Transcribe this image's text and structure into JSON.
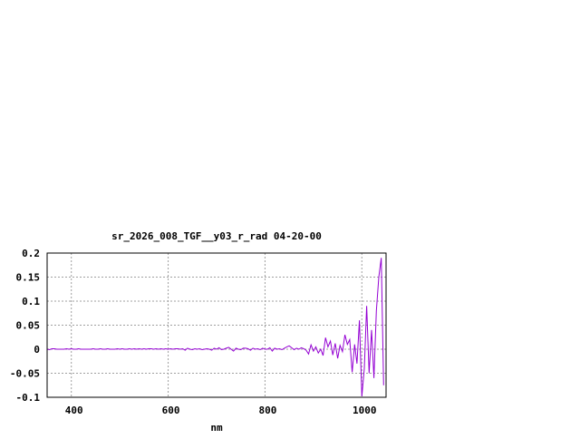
{
  "chart_data": {
    "type": "line",
    "title": "sr_2026_008_TGF__y03_r_rad 04-20-00",
    "xlabel": "nm",
    "ylabel": "",
    "xlim": [
      350,
      1050
    ],
    "ylim": [
      -0.1,
      0.2
    ],
    "xticks": [
      400,
      600,
      800,
      1000
    ],
    "xtick_labels": [
      "400",
      "600",
      "800",
      "1000"
    ],
    "yticks": [
      0.2,
      0.15,
      0.1,
      0.05,
      0,
      -0.05,
      -0.1
    ],
    "ytick_labels": [
      "0.2",
      "0.15",
      "0.1",
      "0.05",
      "0",
      "-0.05",
      "-0.1"
    ],
    "grid": true,
    "line_color": "#9400d3",
    "series": [
      {
        "x_start": 350,
        "x_step": 5,
        "values": [
          0,
          -0.001,
          0.001,
          0.001,
          0,
          0,
          0,
          0,
          0.001,
          0,
          0.001,
          0,
          0,
          0.001,
          0,
          0,
          0,
          0,
          0,
          0.001,
          0,
          0,
          0.001,
          0,
          0,
          0.001,
          0,
          0,
          0,
          0.001,
          0,
          0.001,
          0,
          0,
          0.001,
          0,
          0.001,
          0,
          0.001,
          0,
          0.001,
          0,
          0.001,
          0.001,
          0,
          0.001,
          0,
          0.001,
          0,
          0.001,
          0,
          0.001,
          0,
          0.001,
          0.001,
          0,
          0.001,
          -0.002,
          0.002,
          0,
          -0.001,
          0.001,
          0,
          0.001,
          -0.001,
          0,
          0.001,
          0,
          -0.002,
          0.002,
          0,
          0.003,
          -0.001,
          0,
          0.002,
          0.004,
          0,
          -0.004,
          0.002,
          0,
          -0.001,
          0.002,
          0.002,
          0.001,
          -0.002,
          0.002,
          0,
          0.001,
          -0.001,
          0.002,
          0,
          0,
          0.003,
          -0.004,
          0.002,
          0,
          0.001,
          -0.001,
          0.002,
          0.005,
          0.007,
          0.003,
          -0.001,
          0.002,
          0,
          0.003,
          0.001,
          -0.002,
          -0.01,
          0.009,
          -0.004,
          0.005,
          -0.008,
          0,
          -0.013,
          0.024,
          0.005,
          0.017,
          -0.012,
          0.012,
          -0.019,
          0.008,
          -0.005,
          0.03,
          0.01,
          0.02,
          -0.048,
          0.01,
          -0.03,
          0.06,
          -0.098,
          -0.04,
          0.09,
          -0.05,
          0.04,
          -0.06,
          0.08,
          0.15,
          0.19,
          -0.075
        ]
      }
    ]
  }
}
